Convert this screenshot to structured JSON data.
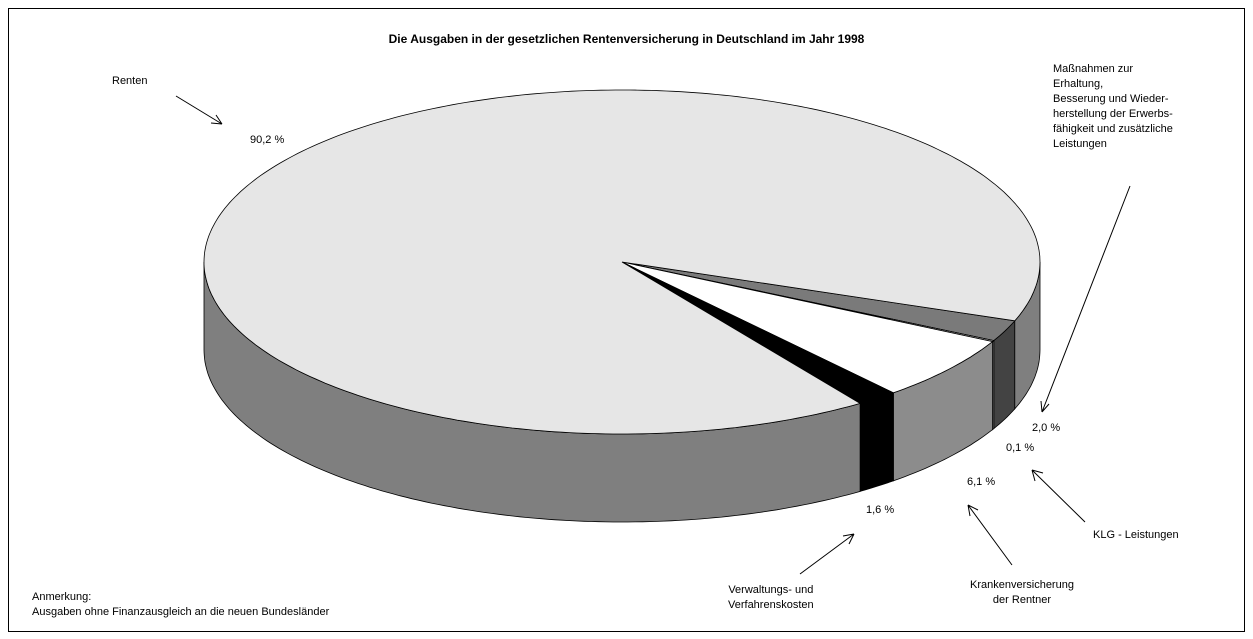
{
  "chart_data": {
    "type": "pie",
    "title": "Die Ausgaben in der gesetzlichen Rentenversicherung in Deutschland im Jahr 1998",
    "categories": [
      "Maßnahmen zur\nErhaltung,\nBesserung und Wieder-\nherstellung der Erwerbs-\nfähigkeit und zusätzliche\nLeistungen",
      "KLG - Leistungen",
      "Krankenversicherung\nder Rentner",
      "Verwaltungs- und\nVerfahrenskosten",
      "Renten"
    ],
    "values": [
      2.0,
      0.1,
      6.1,
      1.6,
      90.2
    ],
    "value_labels": [
      "2,0 %",
      "0,1 %",
      "6,1 %",
      "1,6 %",
      "90,2 %"
    ],
    "colors": [
      "#7a7a7a",
      "#f2f2f2",
      "#ffffff",
      "#000000",
      "#e6e6e6"
    ],
    "note": "Anmerkung:\nAusgaben ohne Finanzausgleich an die neuen Bundesländer"
  }
}
